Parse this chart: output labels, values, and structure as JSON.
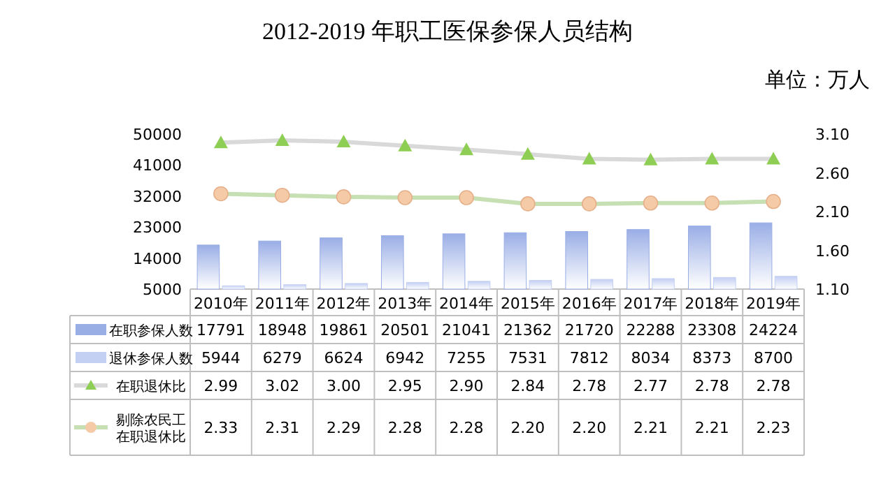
{
  "chart_data": {
    "type": "bar",
    "title": "2012-2019 年职工医保参保人员结构",
    "annotations": [
      "单位：万人"
    ],
    "categories": [
      "2010年",
      "2011年",
      "2012年",
      "2013年",
      "2014年",
      "2015年",
      "2016年",
      "2017年",
      "2018年",
      "2019年"
    ],
    "ylim": [
      5000,
      50000
    ],
    "yticks": [
      5000,
      14000,
      23000,
      32000,
      41000,
      50000
    ],
    "y2lim": [
      1.1,
      3.1
    ],
    "y2ticks": [
      {
        "value": 1.1,
        "label": "1.10"
      },
      {
        "value": 1.6,
        "label": "1.60"
      },
      {
        "value": 2.1,
        "label": "2.10"
      },
      {
        "value": 2.6,
        "label": "2.60"
      },
      {
        "value": 3.1,
        "label": "3.10"
      }
    ],
    "legend": "bottom",
    "grid": false,
    "series": [
      {
        "name": "在职参保人数",
        "color": "#9aaee6",
        "values": [
          17791,
          18948,
          19861,
          20501,
          21041,
          21362,
          21720,
          22288,
          23308,
          24224
        ],
        "value_labels": [
          "17791",
          "18948",
          "19861",
          "20501",
          "21041",
          "21362",
          "21720",
          "22288",
          "23308",
          "24224"
        ]
      },
      {
        "name": "退休参保人数",
        "color": "#c3cff3",
        "values": [
          5944,
          6279,
          6624,
          6942,
          7255,
          7531,
          7812,
          8034,
          8373,
          8700
        ],
        "value_labels": [
          "5944",
          "6279",
          "6624",
          "6942",
          "7255",
          "7531",
          "7812",
          "8034",
          "8373",
          "8700"
        ]
      },
      {
        "name": "在职退休比",
        "type": "line",
        "axis": "y2",
        "color": "#d9d9d9",
        "marker": "triangle",
        "values": [
          2.99,
          3.02,
          3.0,
          2.95,
          2.9,
          2.84,
          2.78,
          2.77,
          2.78,
          2.78
        ],
        "value_labels": [
          "2.99",
          "3.02",
          "3.00",
          "2.95",
          "2.90",
          "2.84",
          "2.78",
          "2.77",
          "2.78",
          "2.78"
        ]
      },
      {
        "name": "剔除农民工在职退休比",
        "type": "line",
        "axis": "y2",
        "color": "#c6e0b4",
        "marker": "circle",
        "values": [
          2.33,
          2.31,
          2.29,
          2.28,
          2.28,
          2.2,
          2.2,
          2.21,
          2.21,
          2.23
        ],
        "value_labels": [
          "2.33",
          "2.31",
          "2.29",
          "2.28",
          "2.28",
          "2.20",
          "2.20",
          "2.21",
          "2.21",
          "2.23"
        ]
      }
    ]
  }
}
